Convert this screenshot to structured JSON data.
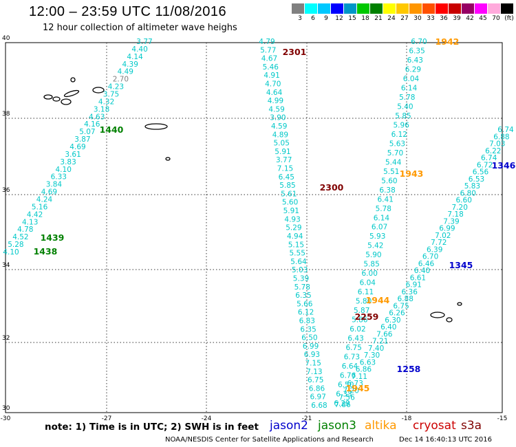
{
  "title": "12:00 – 23:59 UTC 11/08/2016",
  "subtitle": "12 hour collection of altimeter wave heighs",
  "legend": {
    "colors": [
      "#808080",
      "#00ffff",
      "#00c8ff",
      "#0000ff",
      "#0096c8",
      "#00c800",
      "#008000",
      "#ffff00",
      "#ffc800",
      "#ff9600",
      "#ff5000",
      "#ff0000",
      "#c80000",
      "#960064",
      "#ff00ff",
      "#ffaadc",
      "#000000"
    ],
    "labels": [
      "3",
      "6",
      "9",
      "12",
      "15",
      "18",
      "21",
      "24",
      "27",
      "30",
      "33",
      "36",
      "39",
      "42",
      "45",
      "70",
      "(ft)"
    ]
  },
  "map": {
    "lon_ticks": [
      "-30",
      "-27",
      "-24",
      "-21",
      "-18",
      "-15"
    ],
    "lat_ticks": [
      "40",
      "38",
      "36",
      "34",
      "32",
      "30"
    ]
  },
  "note": "note: 1) Time is in UTC; 2) SWH is in feet",
  "satellites": [
    {
      "name": "jason2",
      "color": "#0000cc"
    },
    {
      "name": "jason3",
      "color": "#008000"
    },
    {
      "name": "altika",
      "color": "#ff9900"
    },
    {
      "name": "cryosat",
      "color": "#cc0000"
    },
    {
      "name": "s3a",
      "color": "#800000"
    }
  ],
  "credit": "NOAA/NESDIS Center for Satellite Applications and Research",
  "timestamp": "Dec 14 16:40:13 UTC 2016",
  "tracks": [
    {
      "satellite": "jason3",
      "color": "#00c8c8",
      "values": [
        "3.77",
        "4.40",
        "4.14",
        "4.39",
        "4.49",
        "2.70",
        "4.23",
        "3.75",
        "4.32",
        "3.18",
        "4.63",
        "4.16",
        "5.07",
        "3.87",
        "4.69",
        "3.61",
        "3.83",
        "4.10",
        "6.33",
        "3.84",
        "4.69",
        "4.24",
        "5.16",
        "4.42",
        "4.13",
        "4.78",
        "4.52",
        "5.28",
        "4.10"
      ],
      "times": [
        "1440",
        "1439",
        "1438"
      ]
    },
    {
      "satellite": "cryosat",
      "color": "#00c8c8",
      "values": [
        "4.79",
        "5.77",
        "4.67",
        "5.46",
        "4.91",
        "4.70",
        "4.64",
        "4.99",
        "4.59",
        "3.90",
        "4.59",
        "4.89",
        "5.05",
        "5.91",
        "3.77",
        "7.15",
        "6.45",
        "5.85",
        "5.61",
        "5.60",
        "5.91",
        "4.93",
        "5.29",
        "4.94",
        "5.15",
        "5.55",
        "5.64",
        "5.03",
        "5.39",
        "5.78",
        "6.35",
        "5.66",
        "6.12",
        "6.83",
        "6.35",
        "6.50",
        "6.99",
        "6.93",
        "7.15",
        "7.13",
        "6.75",
        "6.86",
        "6.97",
        "6.68"
      ],
      "times": [
        "2301",
        "2300",
        "2259"
      ]
    },
    {
      "satellite": "altika",
      "color": "#00c8c8",
      "values": [
        "6.70",
        "6.35",
        "6.43",
        "6.29",
        "6.04",
        "6.14",
        "5.78",
        "5.40",
        "5.85",
        "5.96",
        "6.12",
        "5.63",
        "5.70",
        "5.44",
        "5.51",
        "5.60",
        "6.38",
        "6.41",
        "5.78",
        "6.14",
        "6.07",
        "5.93",
        "5.42",
        "5.90",
        "5.85",
        "6.00",
        "6.04",
        "6.11",
        "5.80",
        "5.87",
        "5.86",
        "6.02",
        "6.43",
        "6.75",
        "6.73",
        "6.64",
        "6.76",
        "6.50",
        "6.33",
        "6.29"
      ],
      "times": [
        "1942",
        "1943",
        "1944",
        "1945"
      ]
    },
    {
      "satellite": "jason2",
      "color": "#00c8c8",
      "values": [
        "6.74",
        "6.88",
        "7.03",
        "6.22",
        "6.74",
        "6.72",
        "6.56",
        "6.53",
        "5.83",
        "6.80",
        "6.60",
        "7.20",
        "7.18",
        "7.39",
        "6.99",
        "7.02",
        "7.72",
        "6.39",
        "6.70",
        "6.46",
        "6.40",
        "6.61",
        "6.91",
        "6.36",
        "6.88",
        "6.75",
        "6.26",
        "6.30",
        "6.40",
        "7.66",
        "7.21",
        "7.40",
        "7.30",
        "6.63",
        "6.86",
        "7.11",
        "6.73",
        "7.20",
        "7.56",
        "7.86"
      ],
      "times": [
        "1346",
        "1345",
        "1258"
      ]
    }
  ]
}
